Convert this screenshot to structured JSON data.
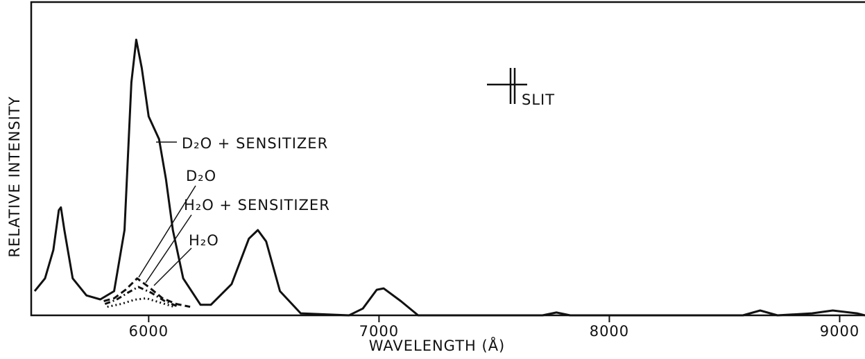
{
  "chart_data": {
    "type": "line",
    "xlabel": "WAVELENGTH (Å)",
    "ylabel": "RELATIVE INTENSITY",
    "annotations": [
      "SLIT"
    ],
    "xlim": [
      5490,
      9110
    ],
    "ylim": [
      0,
      100
    ],
    "xticks": [
      6000,
      7000,
      8000,
      9000
    ],
    "series": [
      {
        "name": "D₂O + SENSITIZER",
        "color": "#111111",
        "style": "solid",
        "x": [
          5505,
          5550,
          5586,
          5610,
          5619,
          5634,
          5670,
          5730,
          5790,
          5850,
          5895,
          5925,
          5946,
          5970,
          6000,
          6045,
          6075,
          6105,
          6150,
          6225,
          6270,
          6360,
          6435,
          6474,
          6510,
          6570,
          6660,
          6870,
          6930,
          6990,
          7020,
          7095,
          7170,
          7710,
          7770,
          7830,
          8580,
          8655,
          8730,
          8880,
          8970,
          9075,
          9110
        ],
        "values": [
          8.5,
          13,
          23,
          37,
          38,
          30,
          13,
          7,
          5.6,
          8.5,
          30,
          82,
          97,
          87,
          70,
          62,
          48,
          30,
          13,
          3.7,
          3.7,
          11,
          27,
          30,
          26,
          8.5,
          0.7,
          0,
          2.4,
          9,
          9.5,
          5,
          0,
          0,
          1,
          0,
          0,
          1.7,
          0,
          0.7,
          1.7,
          0.7,
          0
        ]
      },
      {
        "name": "D₂O",
        "color": "#111111",
        "style": "dashed",
        "x": [
          5805,
          5850,
          5900,
          5950,
          6000,
          6060,
          6120,
          6180
        ],
        "values": [
          5,
          6,
          9,
          13,
          10,
          6,
          4,
          3
        ]
      },
      {
        "name": "H₂O + SENSITIZER",
        "color": "#111111",
        "style": "dashdot",
        "x": [
          5810,
          5860,
          5910,
          5955,
          6010,
          6070,
          6130
        ],
        "values": [
          4,
          5.5,
          8,
          10,
          8,
          5,
          3
        ]
      },
      {
        "name": "H₂O",
        "color": "#111111",
        "style": "dotted",
        "x": [
          5820,
          5880,
          5940,
          5990,
          6050,
          6110
        ],
        "values": [
          3,
          4,
          5.5,
          6,
          4.5,
          3
        ]
      }
    ]
  }
}
